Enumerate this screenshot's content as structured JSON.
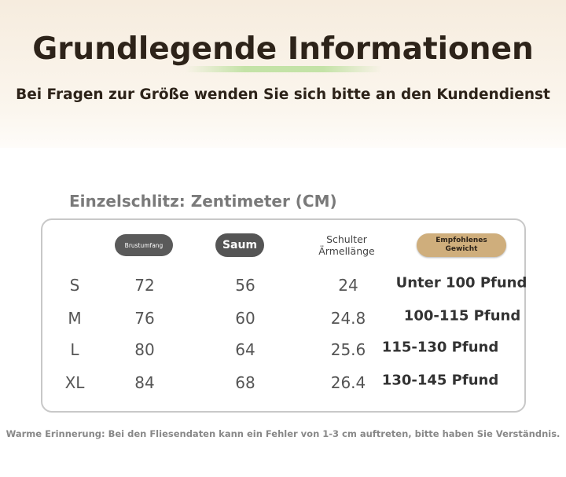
{
  "header": {
    "title": "Grundlegende Informationen",
    "subtitle": "Bei Fragen zur Größe wenden Sie sich bitte an den Kundendienst"
  },
  "section_label": "Einzelschlitz: Zentimeter (CM)",
  "table": {
    "headers": [
      "Brustumfang",
      "Saum",
      "Schulter\nÄrmellänge",
      "Empfohlenes\nGewicht"
    ],
    "rows": [
      [
        "S",
        72,
        56,
        24,
        "Unter 100 Pfund"
      ],
      [
        "M",
        76,
        60,
        24.8,
        "100-115 Pfund"
      ],
      [
        "L",
        80,
        64,
        25.6,
        "115-130 Pfund"
      ],
      [
        "XL",
        84,
        68,
        26.4,
        "130-145 Pfund"
      ]
    ]
  },
  "note": "Warme Erinnerung: Bei den Fliesendaten kann ein Fehler von 1-3 cm auftreten, bitte haben Sie Verständnis."
}
